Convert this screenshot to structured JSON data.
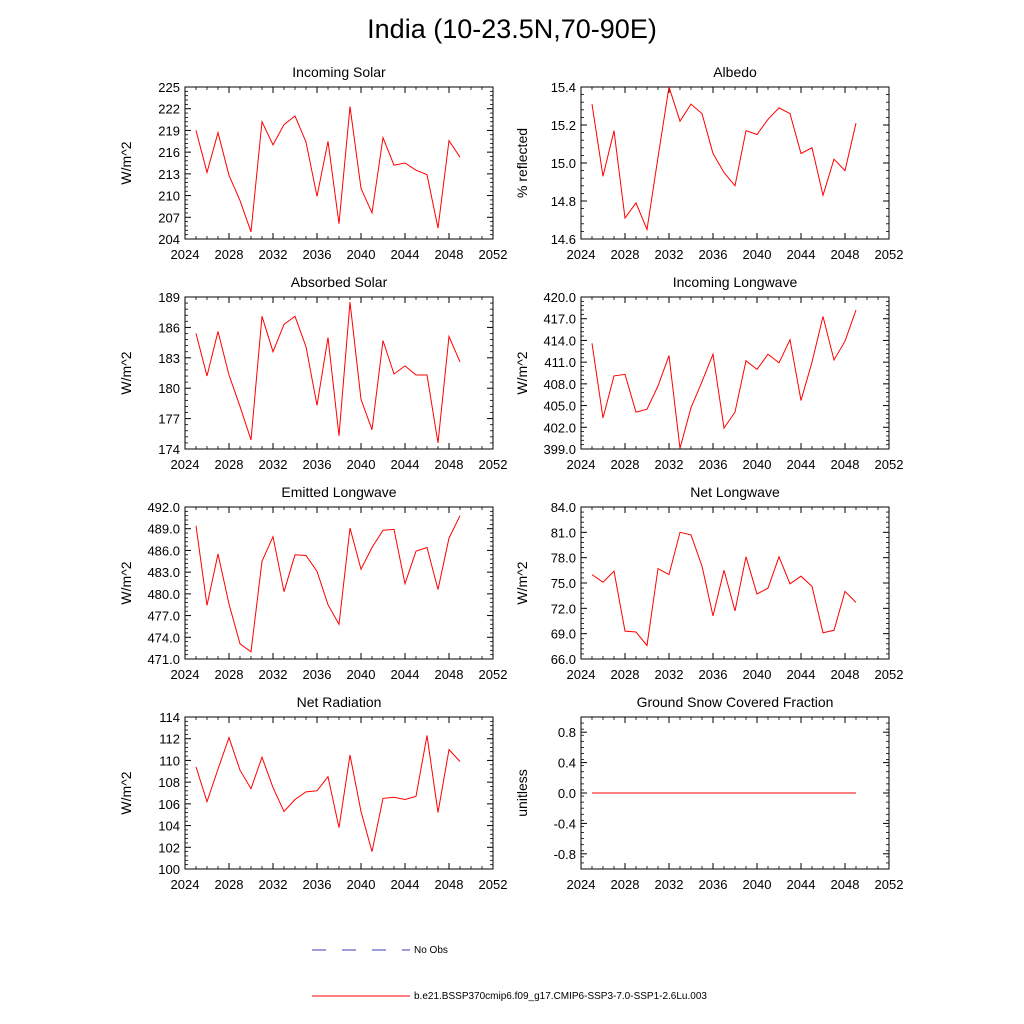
{
  "title": "India (10-23.5N,70-90E)",
  "colors": {
    "series": "#ff0000",
    "obs": "#3b3bb8"
  },
  "legend": {
    "obs_label": "No Obs",
    "model_label": "b.e21.BSSP370cmip6.f09_g17.CMIP6-SSP3-7.0-SSP1-2.6Lu.003"
  },
  "chart_data": [
    {
      "type": "line",
      "title": "Incoming Solar",
      "ylabel": "W/m^2",
      "xlim": [
        2024,
        2052
      ],
      "xticks": [
        "2024",
        "2028",
        "2032",
        "2036",
        "2040",
        "2044",
        "2048",
        "2052"
      ],
      "ylim": [
        204,
        225
      ],
      "yticks": [
        "204",
        "207",
        "210",
        "213",
        "216",
        "219",
        "222",
        "225"
      ],
      "x": [
        2025,
        2026,
        2027,
        2028,
        2029,
        2030,
        2031,
        2032,
        2033,
        2034,
        2035,
        2036,
        2037,
        2038,
        2039,
        2040,
        2041,
        2042,
        2043,
        2044,
        2045,
        2046,
        2047,
        2048,
        2049
      ],
      "values": [
        219.0,
        213.2,
        218.7,
        212.8,
        209.3,
        205.0,
        220.2,
        217.0,
        219.8,
        221.0,
        217.4,
        209.9,
        217.5,
        206.1,
        222.3,
        211.0,
        207.6,
        218.0,
        214.2,
        214.5,
        213.5,
        212.9,
        205.5,
        217.6,
        215.3
      ]
    },
    {
      "type": "line",
      "title": "Albedo",
      "ylabel": "% reflected",
      "xlim": [
        2024,
        2052
      ],
      "xticks": [
        "2024",
        "2028",
        "2032",
        "2036",
        "2040",
        "2044",
        "2048",
        "2052"
      ],
      "ylim": [
        14.6,
        15.4
      ],
      "yticks": [
        "14.6",
        "14.8",
        "15.0",
        "15.2",
        "15.4"
      ],
      "x": [
        2025,
        2026,
        2027,
        2028,
        2029,
        2030,
        2031,
        2032,
        2033,
        2034,
        2035,
        2036,
        2037,
        2038,
        2039,
        2040,
        2041,
        2042,
        2043,
        2044,
        2045,
        2046,
        2047,
        2048,
        2049
      ],
      "values": [
        15.31,
        14.93,
        15.17,
        14.71,
        14.79,
        14.65,
        15.03,
        15.4,
        15.22,
        15.31,
        15.26,
        15.05,
        14.95,
        14.88,
        15.17,
        15.15,
        15.23,
        15.29,
        15.26,
        15.05,
        15.08,
        14.83,
        15.02,
        14.96,
        15.21
      ]
    },
    {
      "type": "line",
      "title": "Absorbed Solar",
      "ylabel": "W/m^2",
      "xlim": [
        2024,
        2052
      ],
      "xticks": [
        "2024",
        "2028",
        "2032",
        "2036",
        "2040",
        "2044",
        "2048",
        "2052"
      ],
      "ylim": [
        174,
        189
      ],
      "yticks": [
        "174",
        "177",
        "180",
        "183",
        "186",
        "189"
      ],
      "x": [
        2025,
        2026,
        2027,
        2028,
        2029,
        2030,
        2031,
        2032,
        2033,
        2034,
        2035,
        2036,
        2037,
        2038,
        2039,
        2040,
        2041,
        2042,
        2043,
        2044,
        2045,
        2046,
        2047,
        2048,
        2049
      ],
      "values": [
        185.4,
        181.2,
        185.6,
        181.3,
        178.2,
        174.9,
        187.1,
        183.6,
        186.3,
        187.1,
        184.1,
        178.3,
        185.0,
        175.3,
        188.5,
        178.9,
        175.9,
        184.7,
        181.4,
        182.2,
        181.3,
        181.3,
        174.6,
        185.1,
        182.6
      ]
    },
    {
      "type": "line",
      "title": "Incoming Longwave",
      "ylabel": "W/m^2",
      "xlim": [
        2024,
        2052
      ],
      "xticks": [
        "2024",
        "2028",
        "2032",
        "2036",
        "2040",
        "2044",
        "2048",
        "2052"
      ],
      "ylim": [
        399,
        420
      ],
      "yticks": [
        "399.0",
        "402.0",
        "405.0",
        "408.0",
        "411.0",
        "414.0",
        "417.0",
        "420.0"
      ],
      "x": [
        2025,
        2026,
        2027,
        2028,
        2029,
        2030,
        2031,
        2032,
        2033,
        2034,
        2035,
        2036,
        2037,
        2038,
        2039,
        2040,
        2041,
        2042,
        2043,
        2044,
        2045,
        2046,
        2047,
        2048,
        2049
      ],
      "values": [
        413.6,
        403.3,
        409.1,
        409.3,
        404.1,
        404.5,
        407.7,
        411.9,
        399.1,
        404.7,
        408.3,
        412.1,
        401.9,
        404.1,
        411.2,
        410.0,
        412.1,
        410.9,
        414.1,
        405.7,
        411.0,
        417.3,
        411.3,
        413.9,
        418.2
      ]
    },
    {
      "type": "line",
      "title": "Emitted Longwave",
      "ylabel": "W/m^2",
      "xlim": [
        2024,
        2052
      ],
      "xticks": [
        "2024",
        "2028",
        "2032",
        "2036",
        "2040",
        "2044",
        "2048",
        "2052"
      ],
      "ylim": [
        471,
        492
      ],
      "yticks": [
        "471.0",
        "474.0",
        "477.0",
        "480.0",
        "483.0",
        "486.0",
        "489.0",
        "492.0"
      ],
      "x": [
        2025,
        2026,
        2027,
        2028,
        2029,
        2030,
        2031,
        2032,
        2033,
        2034,
        2035,
        2036,
        2037,
        2038,
        2039,
        2040,
        2041,
        2042,
        2043,
        2044,
        2045,
        2046,
        2047,
        2048,
        2049
      ],
      "values": [
        489.4,
        478.4,
        485.5,
        478.6,
        473.1,
        472.0,
        484.5,
        487.9,
        480.3,
        485.4,
        485.3,
        483.1,
        478.5,
        475.8,
        489.1,
        483.4,
        486.4,
        488.8,
        488.9,
        481.4,
        485.9,
        486.4,
        480.6,
        487.7,
        490.8
      ]
    },
    {
      "type": "line",
      "title": "Net Longwave",
      "ylabel": "W/m^2",
      "xlim": [
        2024,
        2052
      ],
      "xticks": [
        "2024",
        "2028",
        "2032",
        "2036",
        "2040",
        "2044",
        "2048",
        "2052"
      ],
      "ylim": [
        66,
        84
      ],
      "yticks": [
        "66.0",
        "69.0",
        "72.0",
        "75.0",
        "78.0",
        "81.0",
        "84.0"
      ],
      "x": [
        2025,
        2026,
        2027,
        2028,
        2029,
        2030,
        2031,
        2032,
        2033,
        2034,
        2035,
        2036,
        2037,
        2038,
        2039,
        2040,
        2041,
        2042,
        2043,
        2044,
        2045,
        2046,
        2047,
        2048,
        2049
      ],
      "values": [
        76.0,
        75.1,
        76.4,
        69.3,
        69.2,
        67.6,
        76.7,
        76.0,
        81.0,
        80.7,
        77.0,
        71.1,
        76.5,
        71.7,
        78.1,
        73.7,
        74.4,
        78.1,
        74.9,
        75.8,
        74.6,
        69.1,
        69.4,
        74.0,
        72.7
      ]
    },
    {
      "type": "line",
      "title": "Net Radiation",
      "ylabel": "W/m^2",
      "xlim": [
        2024,
        2052
      ],
      "xticks": [
        "2024",
        "2028",
        "2032",
        "2036",
        "2040",
        "2044",
        "2048",
        "2052"
      ],
      "ylim": [
        100,
        114
      ],
      "yticks": [
        "100",
        "102",
        "104",
        "106",
        "108",
        "110",
        "112",
        "114"
      ],
      "x": [
        2025,
        2026,
        2027,
        2028,
        2029,
        2030,
        2031,
        2032,
        2033,
        2034,
        2035,
        2036,
        2037,
        2038,
        2039,
        2040,
        2041,
        2042,
        2043,
        2044,
        2045,
        2046,
        2047,
        2048,
        2049
      ],
      "values": [
        109.4,
        106.2,
        109.2,
        112.1,
        109.1,
        107.4,
        110.3,
        107.5,
        105.3,
        106.4,
        107.1,
        107.2,
        108.5,
        103.8,
        110.5,
        105.3,
        101.6,
        106.5,
        106.6,
        106.4,
        106.7,
        112.3,
        105.2,
        111.0,
        109.9
      ]
    },
    {
      "type": "line",
      "title": "Ground Snow Covered Fraction",
      "ylabel": "unitless",
      "xlim": [
        2024,
        2052
      ],
      "xticks": [
        "2024",
        "2028",
        "2032",
        "2036",
        "2040",
        "2044",
        "2048",
        "2052"
      ],
      "ylim": [
        -1.0,
        1.0
      ],
      "yticks": [
        "-0.8",
        "-0.4",
        "0.0",
        "0.4",
        "0.8"
      ],
      "x": [
        2025,
        2026,
        2027,
        2028,
        2029,
        2030,
        2031,
        2032,
        2033,
        2034,
        2035,
        2036,
        2037,
        2038,
        2039,
        2040,
        2041,
        2042,
        2043,
        2044,
        2045,
        2046,
        2047,
        2048,
        2049
      ],
      "values": [
        0,
        0,
        0,
        0,
        0,
        0,
        0,
        0,
        0,
        0,
        0,
        0,
        0,
        0,
        0,
        0,
        0,
        0,
        0,
        0,
        0,
        0,
        0,
        0,
        0
      ]
    }
  ]
}
